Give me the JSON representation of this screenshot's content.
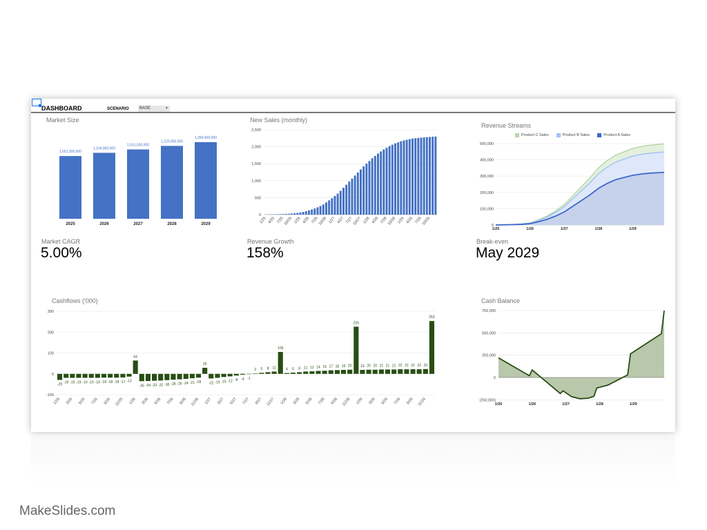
{
  "header": {
    "title": "DASHBOARD",
    "scenario_label": "SCENARIO",
    "scenario_value": "BASE"
  },
  "kpis": [
    {
      "label": "Market CAGR",
      "value": "5.00%"
    },
    {
      "label": "Revenue Growth",
      "value": "158%"
    },
    {
      "label": "Break-even",
      "value": "May 2029"
    }
  ],
  "brand": "MakeSlides.com",
  "colors": {
    "bar_blue": "#4472c4",
    "cash_green": "#274e13",
    "cash_fill": "#b9c8ab",
    "a_line": "#3c68c8",
    "a_fill": "#c6d2ec",
    "b_line": "#a4c2f4",
    "b_fill": "#dfe8fb",
    "c_line": "#b6d7a8",
    "c_fill": "#e4f0dd"
  },
  "chart_data": [
    {
      "id": "market_size",
      "type": "bar",
      "title": "Market Size",
      "categories": [
        "2025",
        "2026",
        "2027",
        "2028",
        "2029"
      ],
      "values": [
        1051200000,
        1104900000,
        1161500000,
        1220900000,
        1283400000
      ],
      "value_labels": [
        "1,051,200,000",
        "1,104,900,000",
        "1,161,500,000",
        "1,220,900,000",
        "1,283,400,000"
      ],
      "ylim": [
        0,
        1283400000
      ]
    },
    {
      "id": "new_sales",
      "type": "bar",
      "title": "New Sales (monthly)",
      "ylim": [
        0,
        2500
      ],
      "yticks": [
        "0",
        "500",
        "1,000",
        "1,500",
        "2,000",
        "2,500"
      ],
      "xticks": [
        "1/25",
        "4/25",
        "7/25",
        "10/25",
        "1/26",
        "4/26",
        "7/26",
        "10/26",
        "1/27",
        "4/27",
        "7/27",
        "10/27",
        "1/28",
        "4/28",
        "7/28",
        "10/28",
        "1/29",
        "4/29",
        "7/29",
        "10/29"
      ],
      "values": [
        5,
        6,
        8,
        10,
        12,
        15,
        18,
        22,
        27,
        33,
        40,
        50,
        62,
        80,
        100,
        125,
        150,
        180,
        215,
        255,
        300,
        360,
        420,
        480,
        550,
        620,
        700,
        790,
        880,
        975,
        1060,
        1150,
        1240,
        1330,
        1420,
        1500,
        1580,
        1660,
        1730,
        1800,
        1860,
        1920,
        1970,
        2020,
        2060,
        2100,
        2130,
        2160,
        2185,
        2205,
        2225,
        2240,
        2250,
        2260,
        2268,
        2275,
        2282,
        2288,
        2294,
        2300
      ]
    },
    {
      "id": "revenue_streams",
      "type": "area",
      "stacked": true,
      "title": "Revenue Streams",
      "legend": [
        "Product C Sales",
        "Product B Sales",
        "Product A Sales"
      ],
      "legend_position": "top",
      "ylim": [
        0,
        500000
      ],
      "yticks": [
        "0",
        "100,000",
        "200,000",
        "300,000",
        "400,000",
        "500,000"
      ],
      "xticks": [
        "1/25",
        "1/26",
        "1/27",
        "1/28",
        "1/29"
      ],
      "x": [
        "1/25",
        "4/25",
        "7/25",
        "10/25",
        "1/26",
        "4/26",
        "7/26",
        "10/26",
        "1/27",
        "4/27",
        "7/27",
        "10/27",
        "1/28",
        "4/28",
        "7/28",
        "10/28",
        "1/29",
        "4/29",
        "7/29",
        "10/29",
        "12/29"
      ],
      "series": [
        {
          "name": "Product A Sales",
          "values": [
            0,
            1000,
            2000,
            4000,
            8000,
            20000,
            35000,
            55000,
            80000,
            115000,
            150000,
            185000,
            225000,
            255000,
            278000,
            292000,
            305000,
            313000,
            318000,
            321000,
            323000
          ]
        },
        {
          "name": "Product B Sales",
          "values": [
            0,
            400,
            800,
            1600,
            3000,
            8000,
            14000,
            22000,
            32000,
            46000,
            60000,
            74000,
            90000,
            100000,
            108000,
            113000,
            118000,
            121000,
            123000,
            124000,
            125000
          ]
        },
        {
          "name": "Product C Sales",
          "values": [
            0,
            200,
            400,
            800,
            1500,
            4000,
            6000,
            9000,
            13000,
            18000,
            24000,
            30000,
            36000,
            40000,
            43000,
            45000,
            47000,
            48000,
            49000,
            50000,
            50000
          ]
        }
      ]
    },
    {
      "id": "cashflows",
      "type": "bar",
      "title": "Cashflows ('000)",
      "ylim": [
        -100,
        300
      ],
      "yticks": [
        "-100",
        "0",
        "100",
        "200",
        "300"
      ],
      "xticks": [
        "1/25",
        "3/25",
        "5/25",
        "7/25",
        "9/25",
        "11/25",
        "1/26",
        "3/26",
        "5/26",
        "7/26",
        "9/26",
        "11/26",
        "1/27",
        "3/27",
        "5/27",
        "7/27",
        "9/27",
        "11/27",
        "1/28",
        "3/28",
        "5/28",
        "7/28",
        "9/28",
        "11/28",
        "1/29",
        "3/29",
        "5/29",
        "7/29",
        "9/29",
        "11/29"
      ],
      "values": [
        -29,
        -19,
        -19,
        -19,
        -19,
        -19,
        -19,
        -18,
        -18,
        -18,
        -17,
        -13,
        64,
        -35,
        -34,
        -33,
        -32,
        -30,
        -28,
        -26,
        -24,
        -21,
        -18,
        29,
        -22,
        -19,
        -15,
        -12,
        -8,
        -4,
        -1,
        2,
        5,
        8,
        11,
        105,
        4,
        6,
        8,
        11,
        12,
        14,
        15,
        17,
        18,
        19,
        20,
        226,
        19,
        20,
        20,
        21,
        21,
        21,
        22,
        22,
        22,
        22,
        23,
        253
      ]
    },
    {
      "id": "cash_balance",
      "type": "area",
      "title": "Cash Balance",
      "ylim": [
        -250000,
        750000
      ],
      "yticks": [
        "(250,000)",
        "0",
        "250,000",
        "500,000",
        "750,000"
      ],
      "xticks": [
        "1/25",
        "1/26",
        "1/27",
        "1/28",
        "1/29"
      ],
      "x": [
        "1/25",
        "12/25",
        "1/26",
        "11/26",
        "12/26",
        "3/27",
        "6/27",
        "9/27",
        "11/27",
        "12/27",
        "4/28",
        "8/28",
        "11/28",
        "12/28",
        "11/29",
        "12/29"
      ],
      "values": [
        220000,
        20000,
        85000,
        -180000,
        -150000,
        -215000,
        -238000,
        -232000,
        -210000,
        -118000,
        -85000,
        -20000,
        30000,
        265000,
        490000,
        750000
      ]
    }
  ]
}
